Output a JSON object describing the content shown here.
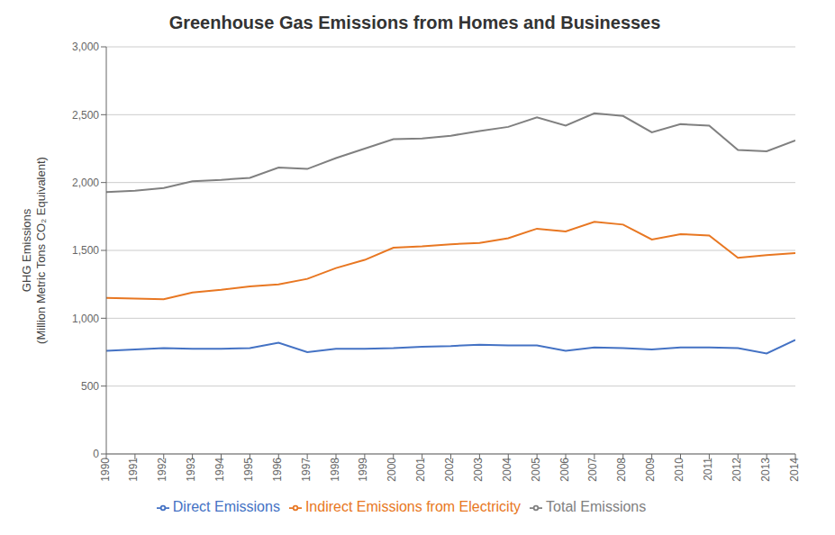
{
  "chart_data": {
    "type": "line",
    "title": "Greenhouse Gas Emissions from Homes and Businesses",
    "ylabel": "GHG Emissions\n(Million Metric Tons CO₂ Equivalent)",
    "x": [
      1990,
      1991,
      1992,
      1993,
      1994,
      1995,
      1996,
      1997,
      1998,
      1999,
      2000,
      2001,
      2002,
      2003,
      2004,
      2005,
      2006,
      2007,
      2008,
      2009,
      2010,
      2011,
      2012,
      2013,
      2014
    ],
    "series": [
      {
        "name": "Direct Emissions",
        "color": "#4472c4",
        "values": [
          760,
          770,
          780,
          775,
          775,
          780,
          820,
          750,
          775,
          775,
          780,
          790,
          795,
          805,
          800,
          800,
          760,
          785,
          780,
          770,
          785,
          785,
          780,
          740,
          840
        ]
      },
      {
        "name": "Indirect Emissions from Electricity",
        "color": "#e87722",
        "values": [
          1150,
          1145,
          1140,
          1190,
          1210,
          1235,
          1250,
          1290,
          1370,
          1430,
          1520,
          1530,
          1545,
          1555,
          1590,
          1660,
          1640,
          1710,
          1690,
          1580,
          1620,
          1610,
          1445,
          1465,
          1480
        ]
      },
      {
        "name": "Total Emissions",
        "color": "#808080",
        "values": [
          1930,
          1940,
          1960,
          2010,
          2020,
          2035,
          2110,
          2100,
          2180,
          2250,
          2320,
          2325,
          2345,
          2380,
          2410,
          2480,
          2420,
          2510,
          2490,
          2370,
          2430,
          2420,
          2240,
          2230,
          2310
        ]
      }
    ],
    "xlim": [
      1990,
      2014
    ],
    "xticks": [
      1990,
      1991,
      1992,
      1993,
      1994,
      1995,
      1996,
      1997,
      1998,
      1999,
      2000,
      2001,
      2002,
      2003,
      2004,
      2005,
      2006,
      2007,
      2008,
      2009,
      2010,
      2011,
      2012,
      2013,
      2014
    ],
    "ylim": [
      0,
      3000
    ],
    "yticks": [
      0,
      500,
      {
        "value": 1000,
        "label": "1,000"
      },
      {
        "value": 1500,
        "label": "1,500"
      },
      {
        "value": 2000,
        "label": "2,000"
      },
      {
        "value": 2500,
        "label": "2,500"
      },
      {
        "value": 3000,
        "label": "3,000"
      }
    ],
    "grid": true,
    "legend": "bottom"
  }
}
